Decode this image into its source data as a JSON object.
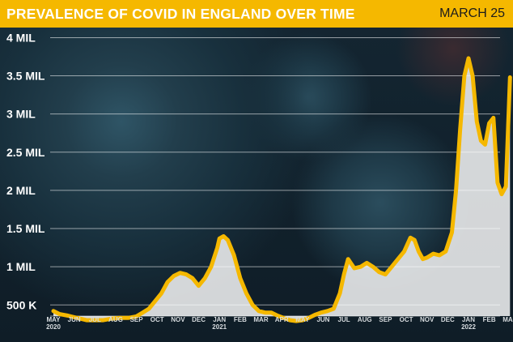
{
  "header": {
    "title": "PREVALENCE OF COVID IN ENGLAND OVER TIME",
    "date": "MARCH 25"
  },
  "colors": {
    "accent": "#f5b800",
    "line": "#f5b800",
    "area": "#ffffff"
  },
  "chart_data": {
    "type": "area",
    "title": "PREVALENCE OF COVID IN ENGLAND OVER TIME",
    "ytick_labels": [
      "500 K",
      "1 MIL",
      "1.5 MIL",
      "2 MIL",
      "2.5 MIL",
      "3 MIL",
      "3.5 MIL",
      "4 MIL"
    ],
    "yticks": [
      500000,
      1000000,
      1500000,
      2000000,
      2500000,
      3000000,
      3500000,
      4000000
    ],
    "ylim": [
      300000,
      4100000
    ],
    "grid": true,
    "x_ticks": [
      {
        "month": 0,
        "labels": [
          "MAY",
          "2020"
        ]
      },
      {
        "month": 1,
        "labels": [
          "JUN"
        ]
      },
      {
        "month": 2,
        "labels": [
          "JUL"
        ]
      },
      {
        "month": 3,
        "labels": [
          "AUG"
        ]
      },
      {
        "month": 4,
        "labels": [
          "SEP"
        ]
      },
      {
        "month": 5,
        "labels": [
          "OCT"
        ]
      },
      {
        "month": 6,
        "labels": [
          "NOV"
        ]
      },
      {
        "month": 7,
        "labels": [
          "DEC"
        ]
      },
      {
        "month": 8,
        "labels": [
          "JAN",
          "2021"
        ]
      },
      {
        "month": 9,
        "labels": [
          "FEB"
        ]
      },
      {
        "month": 10,
        "labels": [
          "MAR"
        ]
      },
      {
        "month": 11,
        "labels": [
          "APR"
        ]
      },
      {
        "month": 12,
        "labels": [
          "MAY"
        ]
      },
      {
        "month": 13,
        "labels": [
          "JUN"
        ]
      },
      {
        "month": 14,
        "labels": [
          "JUL"
        ]
      },
      {
        "month": 15,
        "labels": [
          "AUG"
        ]
      },
      {
        "month": 16,
        "labels": [
          "SEP"
        ]
      },
      {
        "month": 17,
        "labels": [
          "OCT"
        ]
      },
      {
        "month": 18,
        "labels": [
          "NOV"
        ]
      },
      {
        "month": 19,
        "labels": [
          "DEC"
        ]
      },
      {
        "month": 20,
        "labels": [
          "JAN",
          "2022"
        ]
      },
      {
        "month": 21,
        "labels": [
          "FEB"
        ]
      },
      {
        "month": 22,
        "labels": [
          "MAR"
        ]
      }
    ],
    "xlim": [
      0,
      22.2
    ],
    "series": [
      {
        "x": [
          0,
          0.3,
          0.7,
          1.0,
          1.3,
          1.6,
          2.0,
          2.4,
          2.8,
          3.2,
          3.6,
          4.0,
          4.3,
          4.6,
          4.9,
          5.2,
          5.5,
          5.8,
          6.1,
          6.4,
          6.7,
          7.0,
          7.3,
          7.6,
          7.9,
          8.0,
          8.2,
          8.4,
          8.7,
          9.0,
          9.3,
          9.6,
          9.9,
          10.2,
          10.5,
          10.8,
          11.1,
          11.4,
          11.7,
          12.0,
          12.3,
          12.6,
          12.9,
          13.2,
          13.5,
          13.8,
          14.0,
          14.2,
          14.5,
          14.8,
          15.1,
          15.4,
          15.7,
          16.0,
          16.3,
          16.6,
          16.9,
          17.2,
          17.4,
          17.6,
          17.8,
          18.0,
          18.3,
          18.6,
          18.9,
          19.2,
          19.4,
          19.6,
          19.8,
          20.0,
          20.2,
          20.4,
          20.6,
          20.8,
          21.0,
          21.2,
          21.4,
          21.6,
          21.8,
          22.0
        ],
        "values": [
          420000,
          380000,
          360000,
          340000,
          320000,
          300000,
          300000,
          300000,
          320000,
          330000,
          330000,
          350000,
          400000,
          450000,
          550000,
          650000,
          800000,
          880000,
          920000,
          900000,
          850000,
          750000,
          850000,
          1000000,
          1250000,
          1370000,
          1400000,
          1350000,
          1150000,
          850000,
          650000,
          500000,
          420000,
          400000,
          400000,
          360000,
          330000,
          300000,
          290000,
          300000,
          330000,
          370000,
          400000,
          420000,
          450000,
          650000,
          900000,
          1100000,
          980000,
          1000000,
          1050000,
          1000000,
          930000,
          900000,
          1000000,
          1100000,
          1200000,
          1380000,
          1350000,
          1200000,
          1100000,
          1120000,
          1170000,
          1150000,
          1200000,
          1450000,
          2000000,
          2800000,
          3500000,
          3730000,
          3500000,
          2900000,
          2650000,
          2600000,
          2880000,
          2950000,
          2100000,
          1950000,
          2050000,
          3480000
        ]
      }
    ]
  }
}
